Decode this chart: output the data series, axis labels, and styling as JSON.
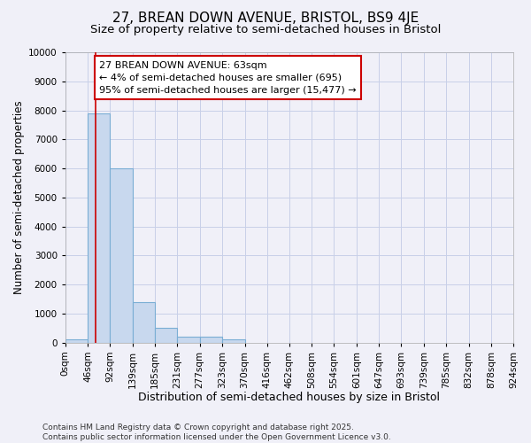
{
  "title": "27, BREAN DOWN AVENUE, BRISTOL, BS9 4JE",
  "subtitle": "Size of property relative to semi-detached houses in Bristol",
  "xlabel": "Distribution of semi-detached houses by size in Bristol",
  "ylabel": "Number of semi-detached properties",
  "bin_edges": [
    0,
    46,
    92,
    139,
    185,
    231,
    277,
    323,
    370,
    416,
    462,
    508,
    554,
    601,
    647,
    693,
    739,
    785,
    832,
    878,
    924
  ],
  "bar_heights": [
    100,
    7900,
    6000,
    1400,
    500,
    200,
    200,
    100,
    0,
    0,
    0,
    0,
    0,
    0,
    0,
    0,
    0,
    0,
    0,
    0
  ],
  "bar_color": "#c8d8ee",
  "bar_edgecolor": "#7aaed4",
  "property_size": 63,
  "red_line_color": "#cc0000",
  "annotation_text": "27 BREAN DOWN AVENUE: 63sqm\n← 4% of semi-detached houses are smaller (695)\n95% of semi-detached houses are larger (15,477) →",
  "annotation_box_facecolor": "#ffffff",
  "annotation_border_color": "#cc0000",
  "ylim": [
    0,
    10000
  ],
  "yticks": [
    0,
    1000,
    2000,
    3000,
    4000,
    5000,
    6000,
    7000,
    8000,
    9000,
    10000
  ],
  "grid_color": "#c8d0e8",
  "bg_color": "#f0f0f8",
  "plot_bg_color": "#f0f0f8",
  "footer_text": "Contains HM Land Registry data © Crown copyright and database right 2025.\nContains public sector information licensed under the Open Government Licence v3.0.",
  "title_fontsize": 11,
  "subtitle_fontsize": 9.5,
  "xlabel_fontsize": 9,
  "ylabel_fontsize": 8.5,
  "tick_fontsize": 7.5,
  "annotation_fontsize": 8,
  "footer_fontsize": 6.5
}
